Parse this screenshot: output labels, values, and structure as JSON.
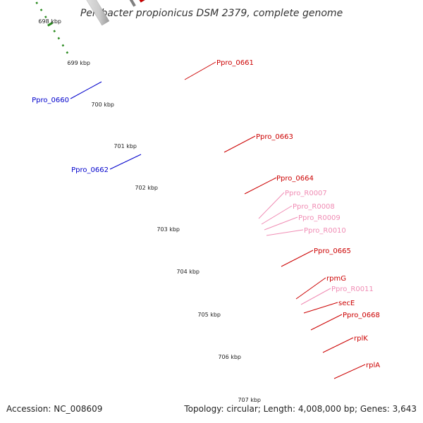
{
  "title": "Pelobacter propionicus DSM 2379, complete genome",
  "footer": {
    "accession": "Accession: NC_008609",
    "summary": "Topology: circular; Length: 4,008,000 bp; Genes: 3,643"
  },
  "colors": {
    "backbone": "#808080",
    "tick": "#2a8a1f",
    "dot": "#2a8a1f",
    "label_red": "#cc0000",
    "label_blue": "#0000cc",
    "label_pink": "#f08cb4"
  },
  "ticks": [
    {
      "label": "698 kbp"
    },
    {
      "label": "699 kbp"
    },
    {
      "label": "700 kbp"
    },
    {
      "label": "701 kbp"
    },
    {
      "label": "702 kbp"
    },
    {
      "label": "703 kbp"
    },
    {
      "label": "704 kbp"
    },
    {
      "label": "705 kbp"
    },
    {
      "label": "706 kbp"
    },
    {
      "label": "707 kbp"
    }
  ],
  "genes": [
    {
      "label": "Ppro_0661",
      "label_color": "red"
    },
    {
      "label": "Ppro_0663",
      "label_color": "red"
    },
    {
      "label": "Ppro_0664",
      "label_color": "red"
    },
    {
      "label": "Ppro_R0007",
      "label_color": "pink"
    },
    {
      "label": "Ppro_R0008",
      "label_color": "pink"
    },
    {
      "label": "Ppro_R0009",
      "label_color": "pink"
    },
    {
      "label": "Ppro_R0010",
      "label_color": "pink"
    },
    {
      "label": "Ppro_0665",
      "label_color": "red"
    },
    {
      "label": "rpmG",
      "label_color": "red"
    },
    {
      "label": "Ppro_R0011",
      "label_color": "pink"
    },
    {
      "label": "secE",
      "label_color": "red"
    },
    {
      "label": "Ppro_0668",
      "label_color": "red"
    },
    {
      "label": "rplK",
      "label_color": "red"
    },
    {
      "label": "rplA",
      "label_color": "red"
    },
    {
      "label": "Ppro_0660",
      "label_color": "blue"
    },
    {
      "label": "Ppro_0662",
      "label_color": "blue"
    }
  ]
}
